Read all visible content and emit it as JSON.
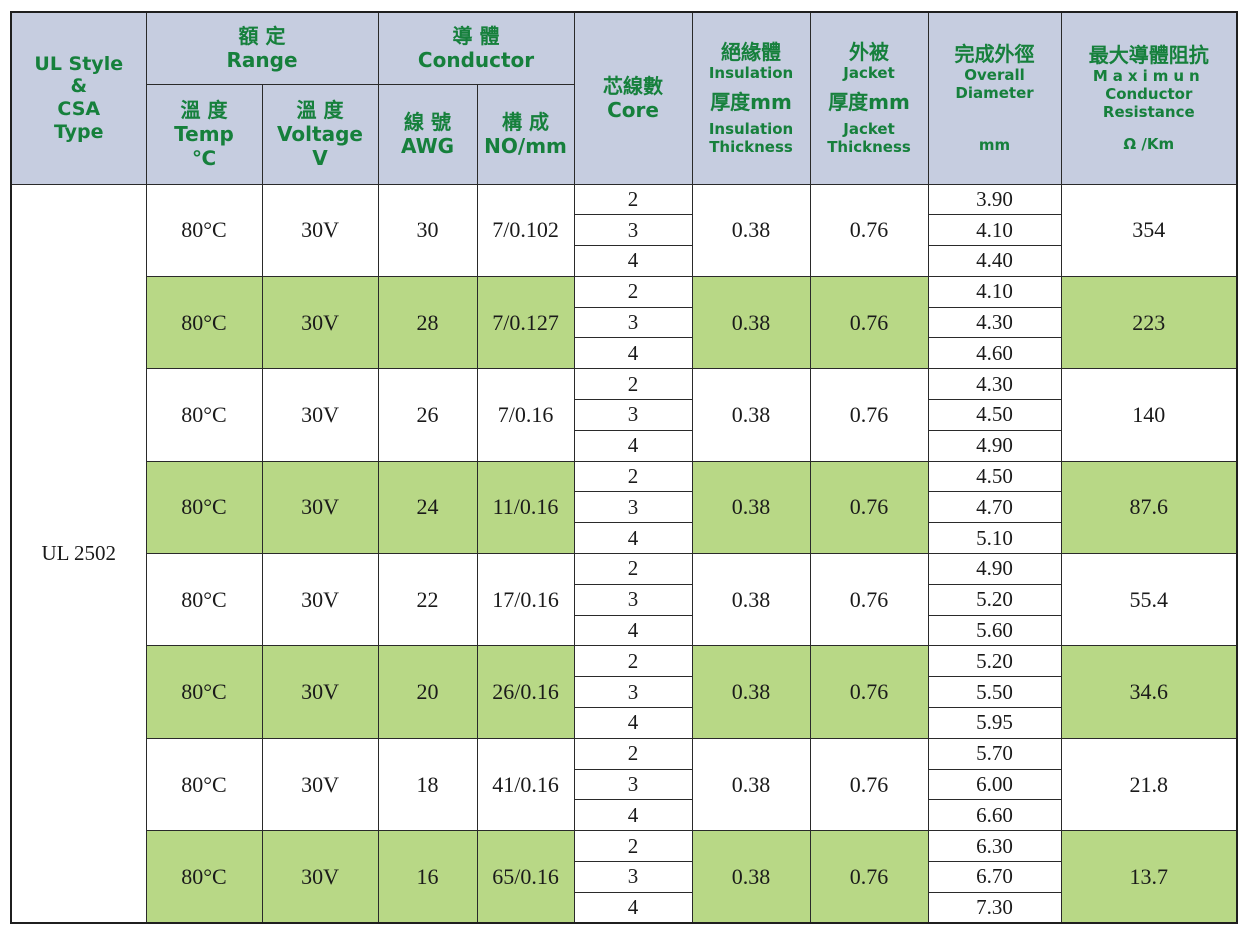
{
  "header": {
    "style": [
      "UL Style",
      "&",
      "CSA",
      "Type"
    ],
    "range": {
      "zh": "額 定",
      "en": "Range"
    },
    "temp": {
      "zh": "溫 度",
      "en": "Temp",
      "unit": "℃"
    },
    "voltage": {
      "zh": "溫 度",
      "en": "Voltage",
      "unit": "V"
    },
    "conductor": {
      "zh": "導 體",
      "en": "Conductor"
    },
    "awg": {
      "zh": "線 號",
      "en": "AWG"
    },
    "construction": {
      "zh": "構 成",
      "en": "NO/mm"
    },
    "core": {
      "zh": "芯線數",
      "en": "Core"
    },
    "insulation": {
      "zh": "絕緣體",
      "en": "Insulation",
      "zh2": "厚度mm",
      "en2a": "Insulation",
      "en2b": "Thickness"
    },
    "jacket": {
      "zh": "外被",
      "en": "Jacket",
      "zh2": "厚度mm",
      "en2a": "Jacket",
      "en2b": "Thickness"
    },
    "diameter": {
      "zh": "完成外徑",
      "en_a": "Overall",
      "en_b": "Diameter",
      "unit": "mm"
    },
    "resistance": {
      "zh": "最大導體阻抗",
      "en_a": "Maximun",
      "en_b": "Conductor",
      "en_c": "Resistance",
      "unit": "Ω /Km"
    }
  },
  "style_value": "UL 2502",
  "groups": [
    {
      "temp": "80°C",
      "voltage": "30V",
      "awg": "30",
      "construction": "7/0.102",
      "cores": [
        "2",
        "3",
        "4"
      ],
      "insulation": "0.38",
      "jacket": "0.76",
      "diameters": [
        "3.90",
        "4.10",
        "4.40"
      ],
      "resistance": "354"
    },
    {
      "temp": "80°C",
      "voltage": "30V",
      "awg": "28",
      "construction": "7/0.127",
      "cores": [
        "2",
        "3",
        "4"
      ],
      "insulation": "0.38",
      "jacket": "0.76",
      "diameters": [
        "4.10",
        "4.30",
        "4.60"
      ],
      "resistance": "223"
    },
    {
      "temp": "80°C",
      "voltage": "30V",
      "awg": "26",
      "construction": "7/0.16",
      "cores": [
        "2",
        "3",
        "4"
      ],
      "insulation": "0.38",
      "jacket": "0.76",
      "diameters": [
        "4.30",
        "4.50",
        "4.90"
      ],
      "resistance": "140"
    },
    {
      "temp": "80°C",
      "voltage": "30V",
      "awg": "24",
      "construction": "11/0.16",
      "cores": [
        "2",
        "3",
        "4"
      ],
      "insulation": "0.38",
      "jacket": "0.76",
      "diameters": [
        "4.50",
        "4.70",
        "5.10"
      ],
      "resistance": "87.6"
    },
    {
      "temp": "80°C",
      "voltage": "30V",
      "awg": "22",
      "construction": "17/0.16",
      "cores": [
        "2",
        "3",
        "4"
      ],
      "insulation": "0.38",
      "jacket": "0.76",
      "diameters": [
        "4.90",
        "5.20",
        "5.60"
      ],
      "resistance": "55.4"
    },
    {
      "temp": "80°C",
      "voltage": "30V",
      "awg": "20",
      "construction": "26/0.16",
      "cores": [
        "2",
        "3",
        "4"
      ],
      "insulation": "0.38",
      "jacket": "0.76",
      "diameters": [
        "5.20",
        "5.50",
        "5.95"
      ],
      "resistance": "34.6"
    },
    {
      "temp": "80°C",
      "voltage": "30V",
      "awg": "18",
      "construction": "41/0.16",
      "cores": [
        "2",
        "3",
        "4"
      ],
      "insulation": "0.38",
      "jacket": "0.76",
      "diameters": [
        "5.70",
        "6.00",
        "6.60"
      ],
      "resistance": "21.8"
    },
    {
      "temp": "80°C",
      "voltage": "30V",
      "awg": "16",
      "construction": "65/0.16",
      "cores": [
        "2",
        "3",
        "4"
      ],
      "insulation": "0.38",
      "jacket": "0.76",
      "diameters": [
        "6.30",
        "6.70",
        "7.30"
      ],
      "resistance": "13.7"
    }
  ],
  "colors": {
    "header_bg": "#c6cde0",
    "header_text": "#16803c",
    "alt_row_bg": "#b8d886"
  }
}
